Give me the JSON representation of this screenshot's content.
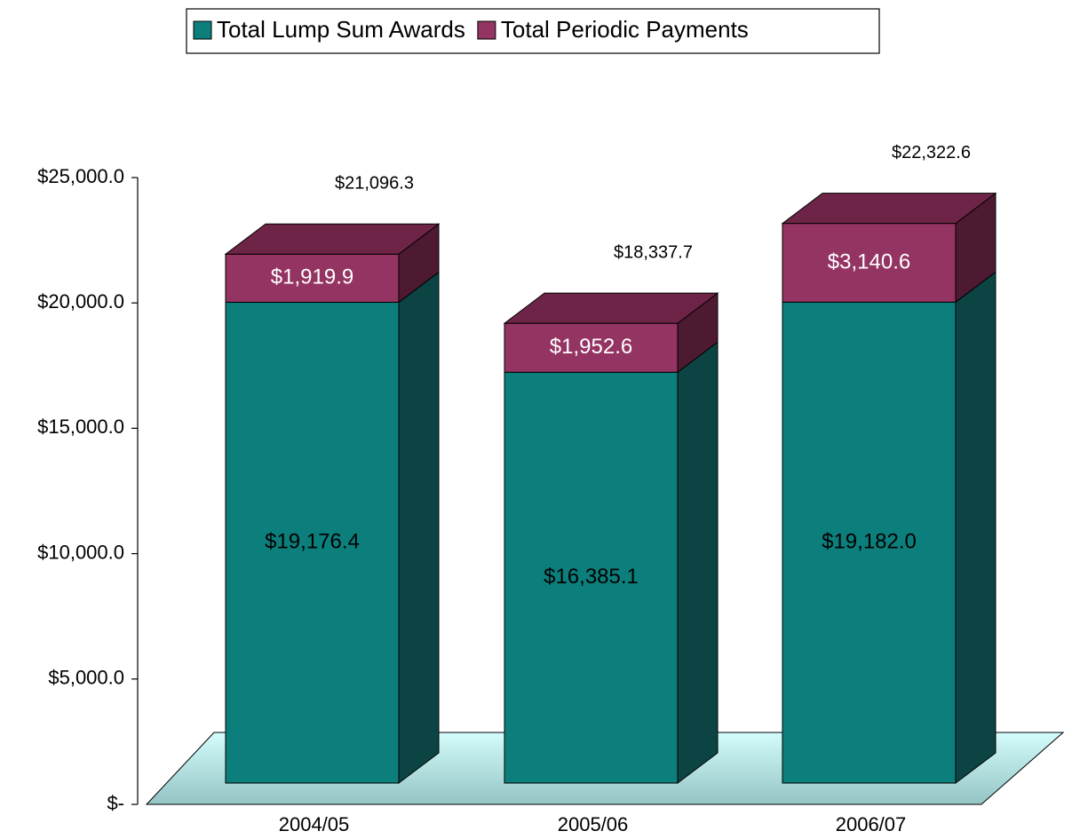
{
  "chart_data": {
    "type": "stacked_bar_3d",
    "categories": [
      "2004/05",
      "2005/06",
      "2006/07"
    ],
    "series": [
      {
        "name": "Total Lump Sum Awards",
        "color": "#0c7f7c",
        "side_color": "#0c4444",
        "values": [
          19176.4,
          16385.1,
          19182.0
        ],
        "value_labels": [
          "$19,176.4",
          "$16,385.1",
          "$19,182.0"
        ]
      },
      {
        "name": "Total Periodic Payments",
        "color": "#943462",
        "side_color": "#4e1a32",
        "top_color": "#6e2447",
        "values": [
          1919.9,
          1952.6,
          3140.6
        ],
        "value_labels": [
          "$1,919.9",
          "$1,952.6",
          "$3,140.6"
        ]
      }
    ],
    "totals": [
      21096.3,
      18337.7,
      22322.6
    ],
    "total_labels": [
      "$21,096.3",
      "$18,337.7",
      "$22,322.6"
    ],
    "ylim": [
      0,
      25000
    ],
    "yticks": [
      {
        "value": 0,
        "label": "$-"
      },
      {
        "value": 5000,
        "label": "$5,000.0"
      },
      {
        "value": 10000,
        "label": "$10,000.0"
      },
      {
        "value": 15000,
        "label": "$15,000.0"
      },
      {
        "value": 20000,
        "label": "$20,000.0"
      },
      {
        "value": 25000,
        "label": "$25,000.0"
      }
    ],
    "legend": "top"
  }
}
